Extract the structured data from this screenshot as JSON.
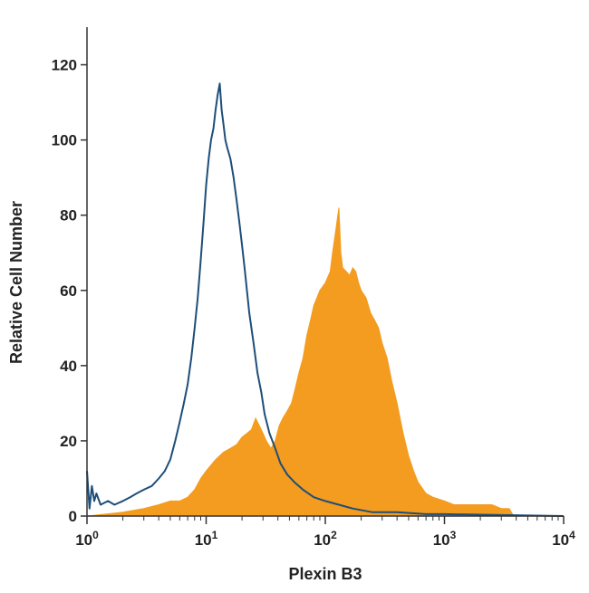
{
  "chart_data": {
    "type": "area",
    "title": "",
    "xlabel": "Plexin B3",
    "ylabel": "Relative Cell Number",
    "x_scale": "log",
    "xlim": [
      1,
      10000
    ],
    "ylim": [
      0,
      130
    ],
    "y_ticks": [
      {
        "value": 0,
        "label": "0"
      },
      {
        "value": 20,
        "label": "20"
      },
      {
        "value": 40,
        "label": "40"
      },
      {
        "value": 60,
        "label": "60"
      },
      {
        "value": 80,
        "label": "80"
      },
      {
        "value": 100,
        "label": "100"
      },
      {
        "value": 120,
        "label": "120"
      }
    ],
    "x_ticks": [
      {
        "value": 1,
        "base": "10",
        "exp": "0"
      },
      {
        "value": 10,
        "base": "10",
        "exp": "1"
      },
      {
        "value": 100,
        "base": "10",
        "exp": "2"
      },
      {
        "value": 1000,
        "base": "10",
        "exp": "3"
      },
      {
        "value": 10000,
        "base": "10",
        "exp": "4"
      }
    ],
    "grid": false,
    "legend": "none",
    "series": [
      {
        "style": "filled",
        "color": "#f39c1f",
        "points": [
          [
            1,
            0
          ],
          [
            2,
            1
          ],
          [
            3,
            2
          ],
          [
            4,
            3
          ],
          [
            5,
            4
          ],
          [
            6,
            4
          ],
          [
            7,
            5
          ],
          [
            8,
            7
          ],
          [
            9,
            10
          ],
          [
            10,
            12
          ],
          [
            12,
            15
          ],
          [
            14,
            17
          ],
          [
            16,
            18
          ],
          [
            18,
            19
          ],
          [
            20,
            21
          ],
          [
            22,
            22
          ],
          [
            24,
            23
          ],
          [
            26,
            26
          ],
          [
            28,
            24
          ],
          [
            30,
            22
          ],
          [
            32,
            20
          ],
          [
            35,
            18
          ],
          [
            38,
            20
          ],
          [
            41,
            24
          ],
          [
            44,
            26
          ],
          [
            48,
            28
          ],
          [
            52,
            30
          ],
          [
            56,
            34
          ],
          [
            60,
            38
          ],
          [
            65,
            42
          ],
          [
            70,
            48
          ],
          [
            75,
            52
          ],
          [
            80,
            56
          ],
          [
            85,
            58
          ],
          [
            90,
            60
          ],
          [
            100,
            62
          ],
          [
            110,
            65
          ],
          [
            115,
            70
          ],
          [
            120,
            74
          ],
          [
            125,
            78
          ],
          [
            130,
            82
          ],
          [
            135,
            70
          ],
          [
            140,
            66
          ],
          [
            150,
            65
          ],
          [
            160,
            64
          ],
          [
            170,
            66
          ],
          [
            180,
            65
          ],
          [
            190,
            62
          ],
          [
            200,
            60
          ],
          [
            220,
            58
          ],
          [
            240,
            54
          ],
          [
            260,
            52
          ],
          [
            280,
            50
          ],
          [
            300,
            46
          ],
          [
            330,
            42
          ],
          [
            360,
            36
          ],
          [
            400,
            30
          ],
          [
            450,
            22
          ],
          [
            500,
            16
          ],
          [
            550,
            12
          ],
          [
            600,
            9
          ],
          [
            700,
            6
          ],
          [
            800,
            5
          ],
          [
            1000,
            4
          ],
          [
            1200,
            3
          ],
          [
            1500,
            3
          ],
          [
            2000,
            3
          ],
          [
            2500,
            3
          ],
          [
            3000,
            2
          ],
          [
            3500,
            2
          ],
          [
            3800,
            0
          ],
          [
            10000,
            0
          ]
        ]
      },
      {
        "style": "outline",
        "color": "#1e4e79",
        "points": [
          [
            1,
            12
          ],
          [
            1.05,
            2
          ],
          [
            1.1,
            8
          ],
          [
            1.15,
            4
          ],
          [
            1.2,
            6
          ],
          [
            1.3,
            3
          ],
          [
            1.5,
            4
          ],
          [
            1.7,
            3
          ],
          [
            2,
            4
          ],
          [
            2.3,
            5
          ],
          [
            2.6,
            6
          ],
          [
            3,
            7
          ],
          [
            3.5,
            8
          ],
          [
            4,
            10
          ],
          [
            4.5,
            12
          ],
          [
            5,
            15
          ],
          [
            5.5,
            20
          ],
          [
            6,
            25
          ],
          [
            6.5,
            30
          ],
          [
            7,
            35
          ],
          [
            7.5,
            42
          ],
          [
            8,
            50
          ],
          [
            8.5,
            58
          ],
          [
            9,
            68
          ],
          [
            9.5,
            78
          ],
          [
            10,
            88
          ],
          [
            10.5,
            95
          ],
          [
            11,
            100
          ],
          [
            11.5,
            103
          ],
          [
            12,
            108
          ],
          [
            12.5,
            112
          ],
          [
            13,
            115
          ],
          [
            13.5,
            108
          ],
          [
            14,
            104
          ],
          [
            14.5,
            100
          ],
          [
            15,
            98
          ],
          [
            16,
            95
          ],
          [
            17,
            90
          ],
          [
            18,
            84
          ],
          [
            19,
            78
          ],
          [
            20,
            72
          ],
          [
            21,
            66
          ],
          [
            22,
            60
          ],
          [
            23,
            54
          ],
          [
            25,
            46
          ],
          [
            27,
            38
          ],
          [
            29,
            33
          ],
          [
            31,
            27
          ],
          [
            34,
            22
          ],
          [
            38,
            18
          ],
          [
            42,
            14
          ],
          [
            48,
            11
          ],
          [
            55,
            9
          ],
          [
            65,
            7
          ],
          [
            80,
            5
          ],
          [
            100,
            4
          ],
          [
            130,
            3
          ],
          [
            170,
            2
          ],
          [
            250,
            1
          ],
          [
            400,
            1
          ],
          [
            700,
            0.5
          ],
          [
            1000,
            0.5
          ],
          [
            10000,
            0
          ]
        ]
      }
    ]
  }
}
